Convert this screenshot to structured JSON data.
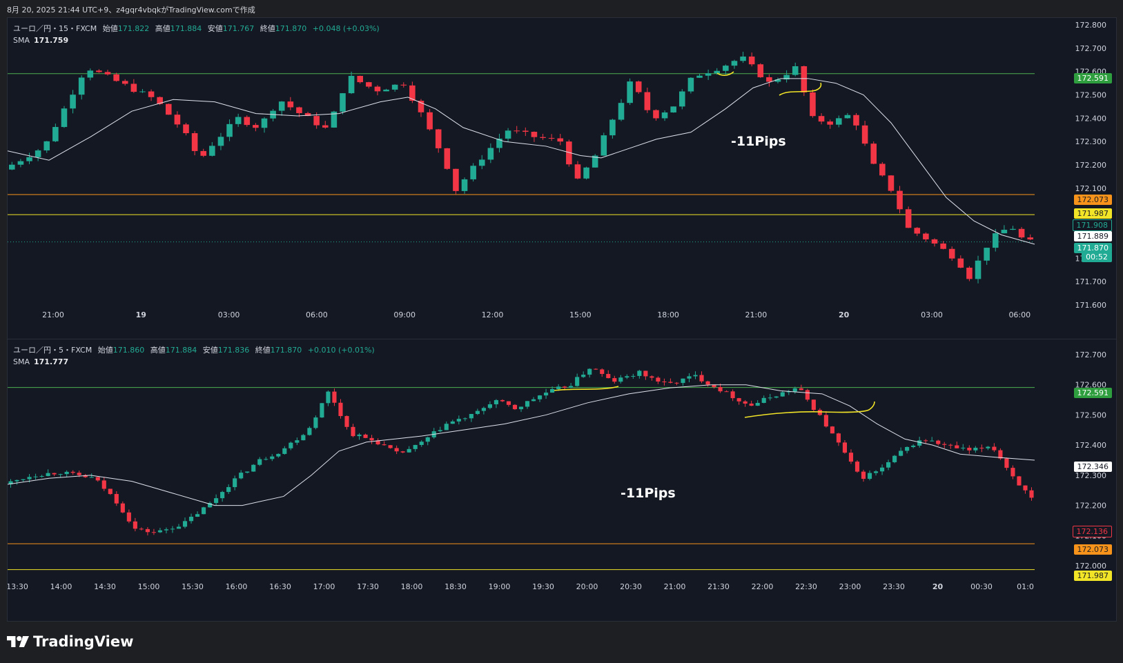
{
  "header": {
    "caption": "8月 20, 2025 21:44 UTC+9、z4gqr4vbqkがTradingView.comで作成"
  },
  "panes": [
    {
      "symbol": "ユーロ／円・15・FXCM",
      "ohlc": [
        {
          "label": "始値",
          "value": "171.822"
        },
        {
          "label": "高値",
          "value": "171.884"
        },
        {
          "label": "安値",
          "value": "171.767"
        },
        {
          "label": "終値",
          "value": "171.870"
        }
      ],
      "change": "+0.048 (+0.03%)",
      "sma_label": "SMA",
      "sma_value": "171.759",
      "annotation": "-11Pips",
      "price_ticks": [
        "172.800",
        "172.700",
        "172.600",
        "172.500",
        "172.400",
        "172.300",
        "172.200",
        "172.100",
        "172.000",
        "171.900",
        "171.800",
        "171.700",
        "171.600"
      ],
      "time_ticks": [
        "21:00",
        "19",
        "03:00",
        "06:00",
        "09:00",
        "12:00",
        "15:00",
        "18:00",
        "21:00",
        "20",
        "03:00",
        "06:00"
      ],
      "price_labels": [
        {
          "text": "172.591",
          "bg": "#2e9e3e",
          "fg": "#ffffff"
        },
        {
          "text": "172.073",
          "bg": "#f7931a",
          "fg": "#1e1f22"
        },
        {
          "text": "171.987",
          "bg": "#f2e427",
          "fg": "#1e1f22"
        },
        {
          "text": "171.908",
          "bg": "#141823",
          "fg": "#22ab94"
        },
        {
          "text": "171.889",
          "bg": "#ffffff",
          "fg": "#141823"
        },
        {
          "text": "171.870",
          "bg": "#22ab94",
          "fg": "#ffffff"
        },
        {
          "text": "00:52",
          "bg": "#22ab94",
          "fg": "#ffffff"
        }
      ]
    },
    {
      "symbol": "ユーロ／円・5・FXCM",
      "ohlc": [
        {
          "label": "始値",
          "value": "171.860"
        },
        {
          "label": "高値",
          "value": "171.884"
        },
        {
          "label": "安値",
          "value": "171.836"
        },
        {
          "label": "終値",
          "value": "171.870"
        }
      ],
      "change": "+0.010 (+0.01%)",
      "sma_label": "SMA",
      "sma_value": "171.777",
      "annotation": "-11Pips",
      "price_ticks": [
        "172.700",
        "172.600",
        "172.500",
        "172.400",
        "172.300",
        "172.200",
        "172.100",
        "172.000"
      ],
      "time_ticks": [
        "13:30",
        "14:00",
        "14:30",
        "15:00",
        "15:30",
        "16:00",
        "16:30",
        "17:00",
        "17:30",
        "18:00",
        "18:30",
        "19:00",
        "19:30",
        "20:00",
        "20:30",
        "21:00",
        "21:30",
        "22:00",
        "22:30",
        "23:00",
        "23:30",
        "20",
        "00:30",
        "01:0"
      ],
      "price_labels": [
        {
          "text": "172.591",
          "bg": "#2e9e3e",
          "fg": "#ffffff"
        },
        {
          "text": "172.346",
          "bg": "#ffffff",
          "fg": "#141823"
        },
        {
          "text": "172.136",
          "bg": "#141823",
          "fg": "#f23645"
        },
        {
          "text": "172.073",
          "bg": "#f7931a",
          "fg": "#1e1f22"
        },
        {
          "text": "171.987",
          "bg": "#f2e427",
          "fg": "#1e1f22"
        }
      ]
    }
  ],
  "colors": {
    "bull": "#22ab94",
    "bear": "#f23645",
    "sma": "#e0e3eb",
    "green_line": "#4caf50",
    "orange_line": "#f7931a",
    "yellow_line": "#f2e427"
  },
  "footer": {
    "brand": "TradingView",
    "logo_icon": "tradingview-logo-icon"
  }
}
